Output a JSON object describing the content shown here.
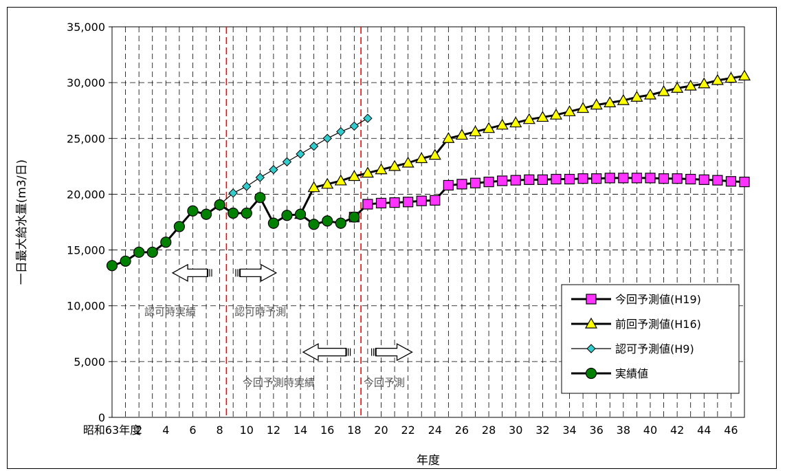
{
  "chart_data": {
    "type": "line",
    "xlabel": "年度",
    "ylabel": "一日最大給水量(m3/日)",
    "ylim": [
      0,
      35000
    ],
    "y_ticks": [
      "0",
      "5,000",
      "10,000",
      "15,000",
      "20,000",
      "25,000",
      "30,000",
      "35,000"
    ],
    "y_tick_values": [
      0,
      5000,
      10000,
      15000,
      20000,
      25000,
      30000,
      35000
    ],
    "x_tick_labels": [
      "昭和63年度",
      "2",
      "4",
      "6",
      "8",
      "10",
      "12",
      "14",
      "16",
      "18",
      "20",
      "22",
      "24",
      "26",
      "28",
      "30",
      "32",
      "34",
      "36",
      "38",
      "40",
      "42",
      "44",
      "46"
    ],
    "x_tick_values": [
      0,
      2,
      4,
      6,
      8,
      10,
      12,
      14,
      16,
      18,
      20,
      22,
      24,
      26,
      28,
      30,
      32,
      34,
      36,
      38,
      40,
      42,
      44,
      46
    ],
    "xlim": [
      0,
      47
    ],
    "grid": true,
    "legend_position": "right",
    "series": [
      {
        "name": "今回予測値(H19)",
        "color": "#ff33ff",
        "marker": "square",
        "x": [
          18,
          19,
          20,
          21,
          22,
          23,
          24,
          25,
          26,
          27,
          28,
          29,
          30,
          31,
          32,
          33,
          34,
          35,
          36,
          37,
          38,
          39,
          40,
          41,
          42,
          43,
          44,
          45,
          46,
          47
        ],
        "values": [
          17950,
          19100,
          19200,
          19250,
          19300,
          19400,
          19450,
          20800,
          20900,
          21000,
          21100,
          21200,
          21250,
          21300,
          21300,
          21350,
          21350,
          21400,
          21400,
          21450,
          21450,
          21450,
          21450,
          21400,
          21400,
          21350,
          21300,
          21250,
          21150,
          21100
        ]
      },
      {
        "name": "前回予測値(H16)",
        "color": "#ffff00",
        "marker": "triangle",
        "x": [
          14,
          15,
          16,
          17,
          18,
          19,
          20,
          21,
          22,
          23,
          24,
          25,
          26,
          27,
          28,
          29,
          30,
          31,
          32,
          33,
          34,
          35,
          36,
          37,
          38,
          39,
          40,
          41,
          42,
          43,
          44,
          45,
          46,
          47
        ],
        "values": [
          18200,
          20600,
          20900,
          21200,
          21600,
          21900,
          22200,
          22500,
          22800,
          23200,
          23500,
          25000,
          25300,
          25600,
          25900,
          26200,
          26400,
          26700,
          26900,
          27100,
          27400,
          27700,
          28000,
          28200,
          28400,
          28700,
          28900,
          29200,
          29500,
          29700,
          29900,
          30200,
          30400,
          30600
        ]
      },
      {
        "name": "認可予測値(H9)",
        "color": "#33cccc",
        "marker": "diamond",
        "x": [
          8,
          9,
          10,
          11,
          12,
          13,
          14,
          15,
          16,
          17,
          18,
          19
        ],
        "values": [
          19050,
          20100,
          20700,
          21500,
          22200,
          22900,
          23600,
          24300,
          25000,
          25600,
          26100,
          26800
        ]
      },
      {
        "name": "実績値",
        "color": "#008000",
        "marker": "circle",
        "x": [
          0,
          1,
          2,
          3,
          4,
          5,
          6,
          7,
          8,
          9,
          10,
          11,
          12,
          13,
          14,
          15,
          16,
          17,
          18
        ],
        "values": [
          13600,
          14000,
          14800,
          14800,
          15700,
          17100,
          18500,
          18200,
          19050,
          18300,
          18300,
          19700,
          17400,
          18100,
          18200,
          17300,
          17600,
          17400,
          17950
        ]
      }
    ],
    "vlines": [
      8.5,
      18.5
    ],
    "annotations": {
      "ninka_jisseki": "認可時実績",
      "ninka_yosoku": "認可時予測",
      "konkai_jisseki": "今回予測時実績",
      "konkai_yosoku": "今回予測"
    }
  }
}
